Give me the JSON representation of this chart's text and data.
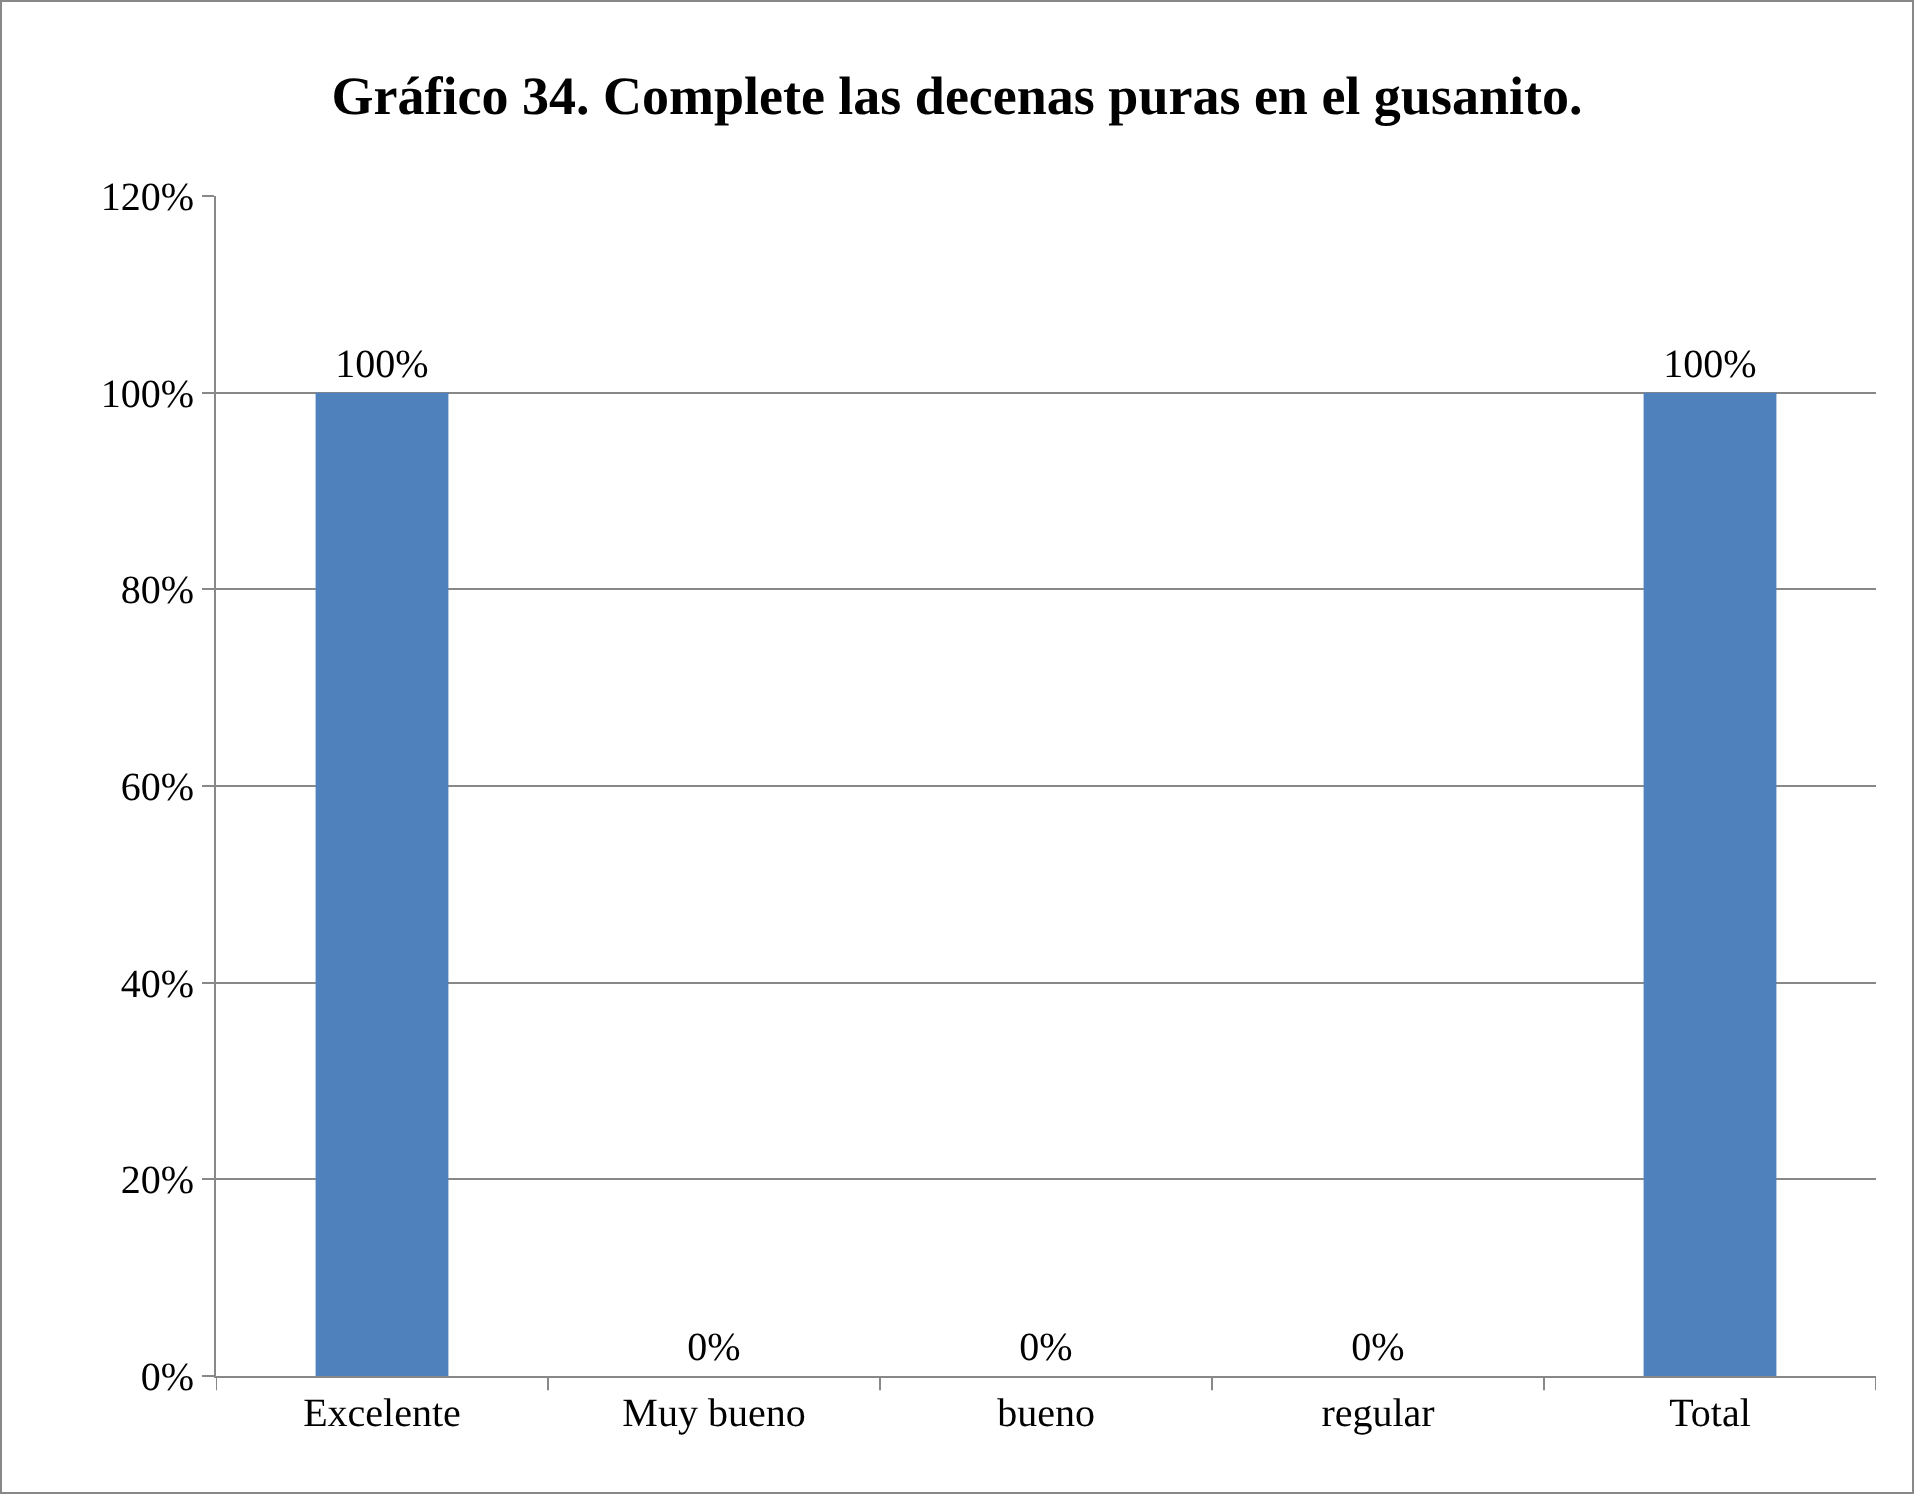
{
  "chart_data": {
    "type": "bar",
    "title": "Gráfico 34. Complete las decenas puras en el gusanito.",
    "categories": [
      "Excelente",
      "Muy bueno",
      "bueno",
      "regular",
      "Total"
    ],
    "values": [
      100,
      0,
      0,
      0,
      100
    ],
    "color": "#4f81bd",
    "value_labels": [
      "100%",
      "0%",
      "0%",
      "0%",
      "100%"
    ],
    "ylim": [
      0,
      120
    ],
    "yticks": [
      {
        "value": 0,
        "label": "0%"
      },
      {
        "value": 20,
        "label": "20%"
      },
      {
        "value": 40,
        "label": "40%"
      },
      {
        "value": 60,
        "label": "60%"
      },
      {
        "value": 80,
        "label": "80%"
      },
      {
        "value": 100,
        "label": "100%"
      },
      {
        "value": 120,
        "label": "120%"
      }
    ],
    "grid": "y"
  }
}
